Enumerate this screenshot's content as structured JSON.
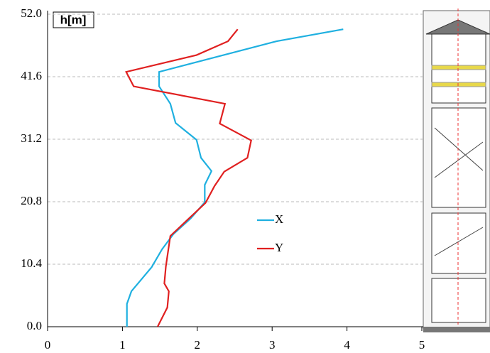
{
  "chart_data": {
    "type": "line",
    "y_label": "h[m]",
    "xlim": [
      0,
      5
    ],
    "xticks": [
      0,
      1,
      2,
      3,
      4,
      5
    ],
    "ylim": [
      0,
      52
    ],
    "yticks": [
      {
        "value": 0,
        "label": "0.0"
      },
      10.4,
      20.8,
      31.2,
      41.6,
      {
        "value": 52,
        "label": "52.0"
      }
    ],
    "grid": true,
    "series": [
      {
        "name": "X",
        "color": "#1fb0e0",
        "x": [
          1.06,
          1.06,
          1.12,
          1.39,
          1.53,
          1.68,
          1.91,
          2.1,
          2.1,
          2.19,
          2.05,
          1.99,
          1.71,
          1.64,
          1.49,
          1.49,
          3.06,
          3.95
        ],
        "values": [
          0,
          3.8,
          5.9,
          9.9,
          12.9,
          15.4,
          18.0,
          20.7,
          23.6,
          25.9,
          28.1,
          31.1,
          33.9,
          37.1,
          40.0,
          42.4,
          47.5,
          49.5
        ]
      },
      {
        "name": "Y",
        "color": "#e02020",
        "x": [
          1.47,
          1.6,
          1.62,
          1.56,
          1.58,
          1.64,
          2.11,
          2.23,
          2.36,
          2.67,
          2.72,
          2.3,
          2.37,
          1.15,
          1.05,
          1.99,
          2.41,
          2.54
        ],
        "values": [
          0,
          3.2,
          5.9,
          7.2,
          10.0,
          15.1,
          20.6,
          23.4,
          25.8,
          28.1,
          31.0,
          33.8,
          37.1,
          40.0,
          42.4,
          45.2,
          47.5,
          49.5
        ]
      }
    ]
  }
}
